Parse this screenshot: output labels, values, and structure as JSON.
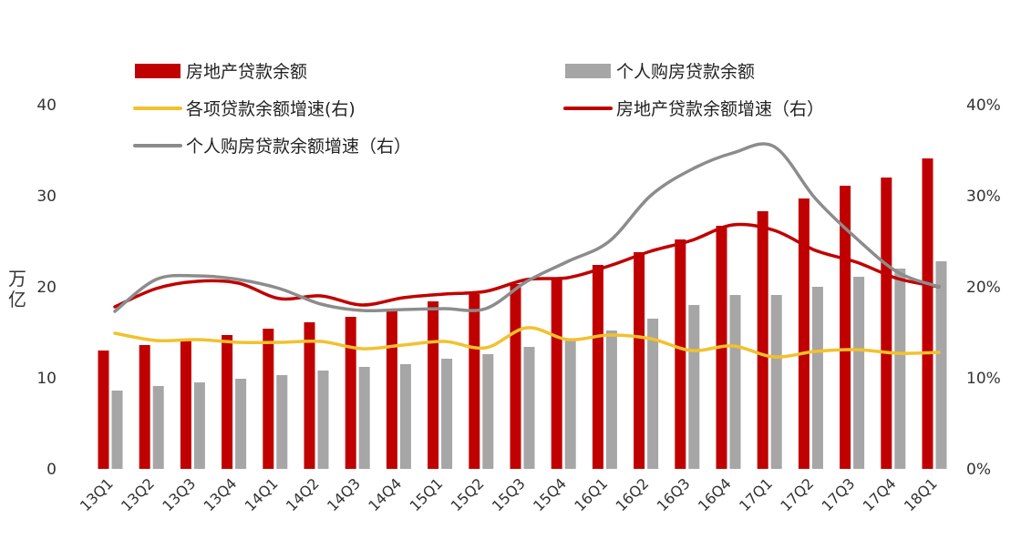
{
  "chart_data": {
    "type": "bar",
    "categories": [
      "13Q1",
      "13Q2",
      "13Q3",
      "13Q4",
      "14Q1",
      "14Q2",
      "14Q3",
      "14Q4",
      "15Q1",
      "15Q2",
      "15Q3",
      "15Q4",
      "16Q1",
      "16Q2",
      "16Q3",
      "16Q4",
      "17Q1",
      "17Q2",
      "17Q3",
      "17Q4",
      "18Q1"
    ],
    "ylabel": "万亿",
    "ylim": [
      0,
      40
    ],
    "yticks": [
      0,
      10,
      20,
      30,
      40
    ],
    "y2lim": [
      0,
      40
    ],
    "y2ticks": [
      "0%",
      "10%",
      "20%",
      "30%",
      "40%"
    ],
    "grid": false,
    "legend_position": "top",
    "bar_series": [
      {
        "name": "房地产贷款余额",
        "color": "#c00000",
        "axis": "left",
        "values": [
          13.0,
          13.6,
          14.3,
          14.7,
          15.4,
          16.1,
          16.7,
          17.4,
          18.4,
          19.2,
          20.3,
          21.0,
          22.4,
          23.8,
          25.2,
          26.7,
          28.3,
          29.7,
          31.1,
          32.0,
          34.1
        ]
      },
      {
        "name": "个人购房贷款余额",
        "color": "#a6a6a6",
        "axis": "left",
        "values": [
          8.6,
          9.1,
          9.5,
          9.9,
          10.3,
          10.8,
          11.2,
          11.5,
          12.1,
          12.6,
          13.4,
          14.2,
          15.2,
          16.5,
          18.0,
          19.1,
          19.1,
          20.0,
          21.1,
          22.0,
          22.8
        ]
      }
    ],
    "line_series": [
      {
        "name": "各项贷款余额增速(右)",
        "color": "#f2c12e",
        "axis": "right",
        "values": [
          14.9,
          14.1,
          14.2,
          13.9,
          13.9,
          14.0,
          13.2,
          13.6,
          14.0,
          13.3,
          15.5,
          14.2,
          14.7,
          14.3,
          13.0,
          13.5,
          12.3,
          12.9,
          13.1,
          12.7,
          12.8
        ]
      },
      {
        "name": "房地产贷款余额增速（右）",
        "color": "#c00000",
        "axis": "right",
        "values": [
          17.8,
          19.8,
          20.6,
          20.4,
          18.7,
          19.0,
          18.0,
          18.8,
          19.2,
          19.5,
          20.8,
          21.0,
          22.3,
          23.9,
          25.1,
          26.8,
          26.2,
          24.0,
          22.7,
          20.9,
          20.0
        ]
      },
      {
        "name": "个人购房贷款余额增速（右）",
        "color": "#8c8c8c",
        "axis": "right",
        "values": [
          17.3,
          20.8,
          21.2,
          20.8,
          19.8,
          18.1,
          17.4,
          17.5,
          17.6,
          17.6,
          20.6,
          22.8,
          25.0,
          30.0,
          32.9,
          34.7,
          35.4,
          29.7,
          25.3,
          21.6,
          20.0
        ]
      }
    ]
  }
}
